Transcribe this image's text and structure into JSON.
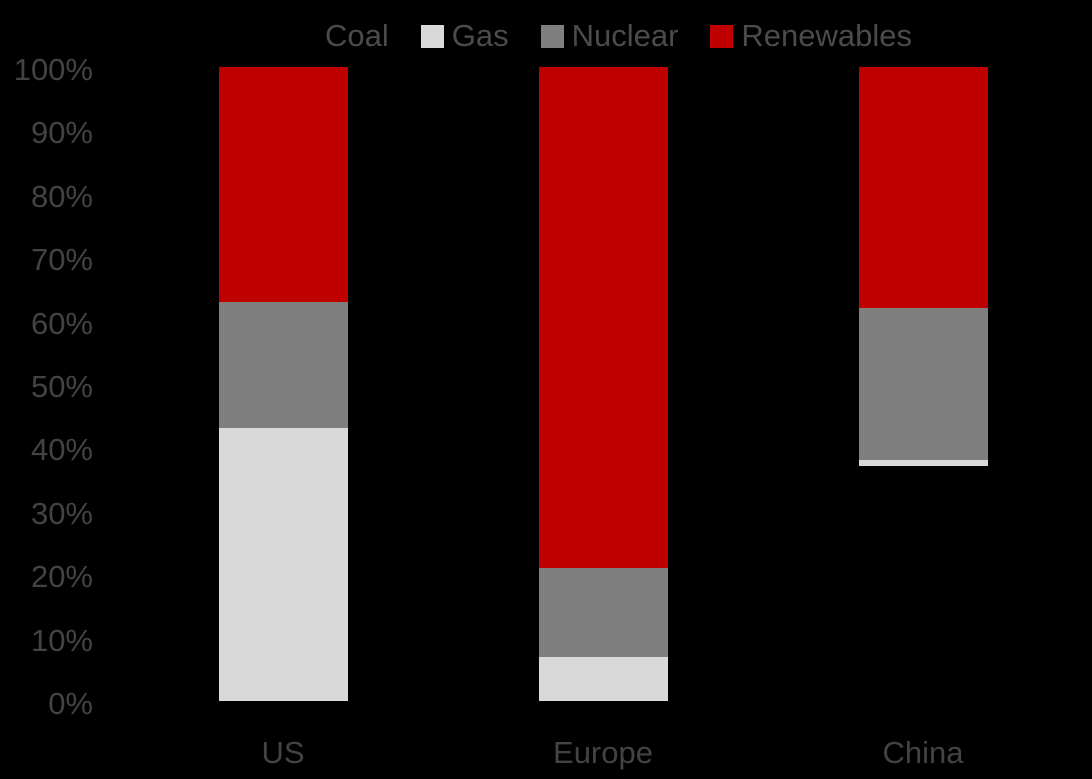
{
  "canvas": {
    "background": "#000000",
    "text_color": "#444444"
  },
  "chart_data": {
    "type": "bar",
    "variant": "100%-stacked-column",
    "title": "",
    "xlabel": "",
    "ylabel": "",
    "categories": [
      "US",
      "Europe",
      "China"
    ],
    "series": [
      {
        "name": "Coal",
        "color": "#000000",
        "values": [
          0,
          0,
          37
        ]
      },
      {
        "name": "Gas",
        "color": "#D9D9D9",
        "values": [
          43,
          7,
          1
        ]
      },
      {
        "name": "Nuclear",
        "color": "#7F7F7F",
        "values": [
          20,
          14,
          24
        ]
      },
      {
        "name": "Renewables",
        "color": "#C00000",
        "values": [
          37,
          79,
          38
        ]
      }
    ],
    "y_axis": {
      "min": 0,
      "max": 100,
      "step": 10,
      "unit": "%",
      "ticks": [
        "0%",
        "10%",
        "20%",
        "30%",
        "40%",
        "50%",
        "60%",
        "70%",
        "80%",
        "90%",
        "100%"
      ]
    },
    "legend_position": "top",
    "gridlines": false
  }
}
